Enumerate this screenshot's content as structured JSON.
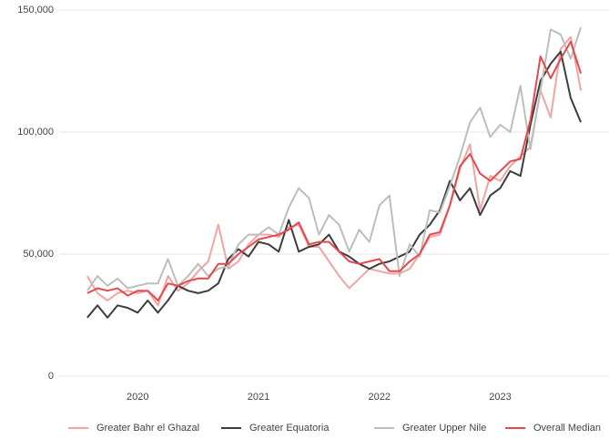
{
  "chart_data": {
    "type": "line",
    "x": [
      2019.583,
      2019.667,
      2019.75,
      2019.833,
      2019.917,
      2020,
      2020.083,
      2020.167,
      2020.25,
      2020.333,
      2020.417,
      2020.5,
      2020.583,
      2020.667,
      2020.75,
      2020.833,
      2020.917,
      2021,
      2021.083,
      2021.167,
      2021.25,
      2021.333,
      2021.417,
      2021.5,
      2021.583,
      2021.667,
      2021.75,
      2021.833,
      2021.917,
      2022,
      2022.083,
      2022.167,
      2022.25,
      2022.333,
      2022.417,
      2022.5,
      2022.583,
      2022.667,
      2022.75,
      2022.833,
      2022.917,
      2023,
      2023.083,
      2023.167,
      2023.25,
      2023.333,
      2023.417,
      2023.5,
      2023.583,
      2023.667
    ],
    "xlim": [
      2019.35,
      2023.9
    ],
    "xticks": [
      2020,
      2021,
      2022,
      2023
    ],
    "ylim": [
      0,
      150000
    ],
    "yticks": [
      0,
      {
        "value": 50000,
        "label": "50,000"
      },
      {
        "value": 100000,
        "label": "100,000"
      },
      {
        "value": 150000,
        "label": "150,000"
      }
    ],
    "grid": true,
    "legend": "bottom",
    "series": [
      {
        "name": "Greater Bahr el Ghazal",
        "color": "#f4a3a3",
        "values": [
          41000,
          34000,
          31000,
          34000,
          35000,
          34000,
          35000,
          29000,
          41000,
          35000,
          38000,
          43000,
          47000,
          62000,
          44000,
          47000,
          54000,
          58000,
          58000,
          57000,
          61000,
          62000,
          53000,
          53000,
          47000,
          41000,
          36000,
          40000,
          44000,
          43000,
          42000,
          42000,
          44000,
          50000,
          57000,
          58000,
          70000,
          85000,
          95000,
          68000,
          82000,
          80000,
          86000,
          90000,
          94000,
          117000,
          106000,
          134000,
          139000,
          117000
        ]
      },
      {
        "name": "Greater Equatoria",
        "color": "#3d3d3d",
        "values": [
          24000,
          29000,
          24000,
          29000,
          28000,
          26000,
          31000,
          26000,
          31000,
          37000,
          35000,
          34000,
          35000,
          38000,
          48000,
          52000,
          49000,
          55000,
          54000,
          51000,
          64000,
          51000,
          53000,
          54000,
          58000,
          51000,
          49000,
          46000,
          44000,
          46000,
          47000,
          49000,
          51000,
          58000,
          62000,
          68000,
          80000,
          72000,
          77000,
          66000,
          74000,
          77000,
          84000,
          82000,
          103000,
          121000,
          128000,
          133000,
          114000,
          104000
        ]
      },
      {
        "name": "Greater Upper Nile",
        "color": "#bdbdbd",
        "values": [
          35000,
          41000,
          37000,
          40000,
          36000,
          37000,
          38000,
          38000,
          48000,
          37000,
          41000,
          46000,
          41000,
          44000,
          45000,
          54000,
          58000,
          58000,
          61000,
          58000,
          69000,
          77000,
          73000,
          58000,
          66000,
          62000,
          51000,
          60000,
          55000,
          70000,
          74000,
          41000,
          54000,
          49000,
          68000,
          67000,
          78000,
          90000,
          104000,
          110000,
          98000,
          103000,
          100000,
          119000,
          93000,
          117000,
          142000,
          140000,
          130000,
          143000
        ]
      },
      {
        "name": "Overall Median",
        "color": "#e5484d",
        "values": [
          34000,
          36000,
          35000,
          36000,
          33000,
          35000,
          35000,
          31000,
          38000,
          37000,
          39000,
          40000,
          40000,
          46000,
          46000,
          50000,
          53000,
          56000,
          57000,
          58000,
          60000,
          63000,
          54000,
          55000,
          55000,
          51000,
          47000,
          46000,
          47000,
          48000,
          43000,
          43000,
          47000,
          50000,
          58000,
          59000,
          70000,
          86000,
          91000,
          83000,
          80000,
          84000,
          88000,
          89000,
          105000,
          131000,
          122000,
          130000,
          137000,
          124000
        ]
      }
    ]
  }
}
